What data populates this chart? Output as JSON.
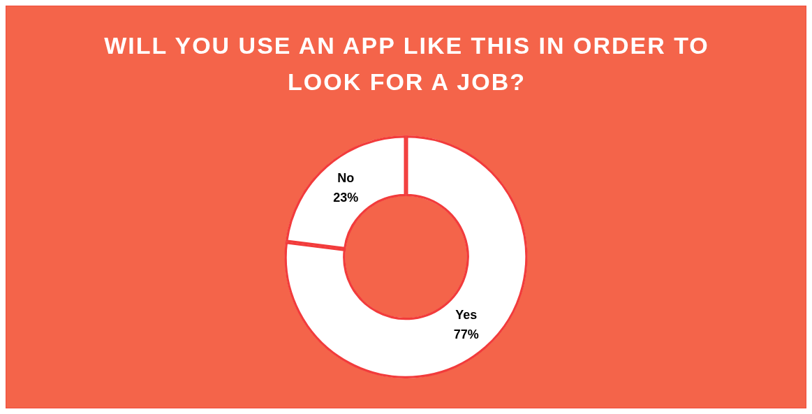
{
  "chart_data": {
    "type": "donut",
    "title": "WILL YOU USE AN APP LIKE THIS IN ORDER TO LOOK FOR A JOB?",
    "categories": [
      "Yes",
      "No"
    ],
    "values": [
      77,
      23
    ],
    "colors": [
      "#ffffff",
      "#ffffff"
    ],
    "value_labels": [
      "77%",
      "23%"
    ],
    "legend": false
  }
}
